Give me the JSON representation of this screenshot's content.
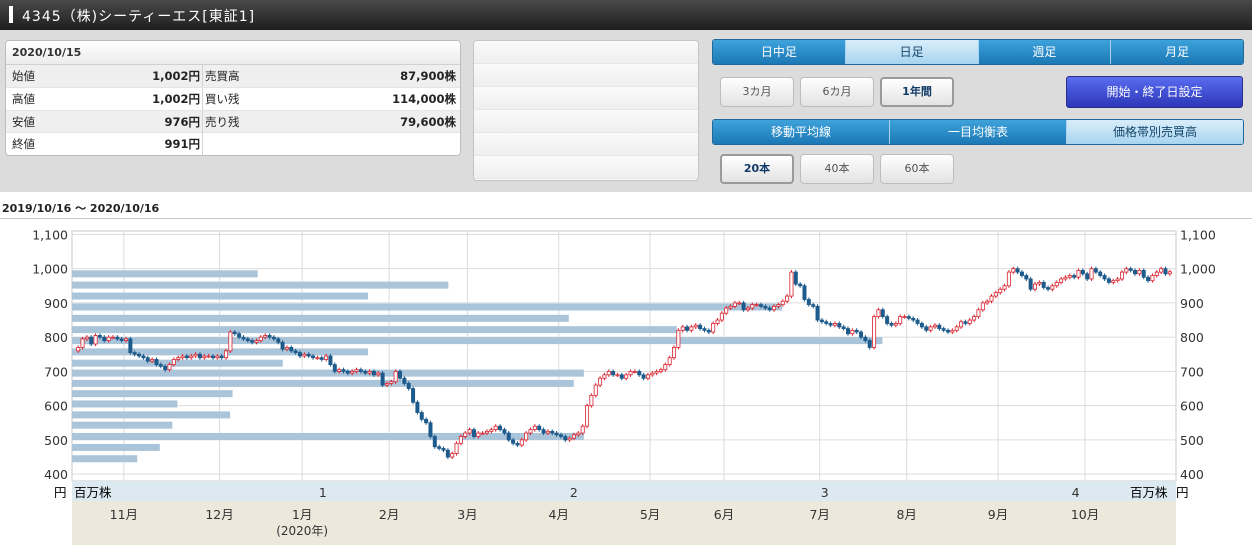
{
  "header": {
    "title": "4345（株)シーティーエス[東証1]"
  },
  "quote": {
    "date": "2020/10/15",
    "rows": [
      {
        "label1": "始値",
        "value1": "1,002円",
        "label2": "売買高",
        "value2": "87,900株"
      },
      {
        "label1": "高値",
        "value1": "1,002円",
        "label2": "買い残",
        "value2": "114,000株"
      },
      {
        "label1": "安値",
        "value1": "976円",
        "label2": "売り残",
        "value2": "79,600株"
      },
      {
        "label1": "終値",
        "value1": "991円",
        "label2": "",
        "value2": ""
      }
    ]
  },
  "controls": {
    "timeframe_tabs": [
      {
        "label": "日中足",
        "active": false
      },
      {
        "label": "日足",
        "active": true
      },
      {
        "label": "週足",
        "active": false
      },
      {
        "label": "月足",
        "active": false
      }
    ],
    "period_buttons": [
      {
        "label": "3カ月",
        "active": false
      },
      {
        "label": "6カ月",
        "active": false
      },
      {
        "label": "1年間",
        "active": true
      }
    ],
    "range_button": "開始・終了日設定",
    "indicator_tabs": [
      {
        "label": "移動平均線",
        "active": false
      },
      {
        "label": "一目均衡表",
        "active": false
      },
      {
        "label": "価格帯別売買高",
        "active": true
      }
    ],
    "ma_buttons": [
      {
        "label": "20本",
        "active": true
      },
      {
        "label": "40本",
        "active": false
      },
      {
        "label": "60本",
        "active": false
      }
    ]
  },
  "period_text": "2019/10/16 ～ 2020/10/16",
  "colors": {
    "up": "#d9232f",
    "down": "#1d5b8c",
    "volume_bar": "#aac4d9",
    "axis_band": "#dde9f1",
    "month_band": "#ece9dc"
  },
  "chart_data": {
    "type": "candlestick",
    "y_unit": "円",
    "volume_unit": "百万株",
    "ylim": [
      380,
      1110
    ],
    "y_ticks": [
      "1,100",
      "1,000",
      "900",
      "800",
      "700",
      "600",
      "500",
      "400"
    ],
    "volume_axis_ticks": [
      "1",
      "2",
      "3",
      "4"
    ],
    "volume_axis_max": 4.4,
    "x_month_labels": [
      {
        "label": "11月",
        "sub": ""
      },
      {
        "label": "12月",
        "sub": ""
      },
      {
        "label": "1月",
        "sub": "(2020年)"
      },
      {
        "label": "2月",
        "sub": ""
      },
      {
        "label": "3月",
        "sub": ""
      },
      {
        "label": "4月",
        "sub": ""
      },
      {
        "label": "5月",
        "sub": ""
      },
      {
        "label": "6月",
        "sub": ""
      },
      {
        "label": "7月",
        "sub": ""
      },
      {
        "label": "8月",
        "sub": ""
      },
      {
        "label": "9月",
        "sub": ""
      },
      {
        "label": "10月",
        "sub": ""
      }
    ],
    "month_start_index": [
      11,
      33,
      52,
      72,
      90,
      111,
      132,
      149,
      171,
      191,
      212,
      232
    ],
    "volume_by_price": [
      {
        "price": 985,
        "volume": 0.74
      },
      {
        "price": 952,
        "volume": 1.5
      },
      {
        "price": 920,
        "volume": 1.18
      },
      {
        "price": 888,
        "volume": 2.83
      },
      {
        "price": 855,
        "volume": 1.98
      },
      {
        "price": 822,
        "volume": 2.41
      },
      {
        "price": 790,
        "volume": 3.23
      },
      {
        "price": 757,
        "volume": 1.18
      },
      {
        "price": 724,
        "volume": 0.84
      },
      {
        "price": 695,
        "volume": 2.04
      },
      {
        "price": 665,
        "volume": 2.0
      },
      {
        "price": 635,
        "volume": 0.64
      },
      {
        "price": 605,
        "volume": 0.42
      },
      {
        "price": 573,
        "volume": 0.63
      },
      {
        "price": 543,
        "volume": 0.4
      },
      {
        "price": 510,
        "volume": 2.04
      },
      {
        "price": 478,
        "volume": 0.35
      },
      {
        "price": 445,
        "volume": 0.26
      }
    ],
    "close": [
      770,
      795,
      800,
      780,
      805,
      800,
      790,
      800,
      800,
      795,
      790,
      795,
      755,
      750,
      745,
      740,
      730,
      735,
      720,
      715,
      705,
      720,
      735,
      740,
      745,
      740,
      745,
      750,
      740,
      745,
      745,
      740,
      745,
      740,
      760,
      815,
      810,
      800,
      795,
      790,
      785,
      790,
      800,
      805,
      800,
      795,
      785,
      765,
      770,
      760,
      755,
      745,
      750,
      745,
      740,
      740,
      735,
      745,
      720,
      700,
      705,
      700,
      695,
      700,
      705,
      700,
      695,
      700,
      690,
      695,
      660,
      665,
      670,
      700,
      680,
      665,
      650,
      610,
      580,
      560,
      550,
      510,
      480,
      475,
      470,
      450,
      460,
      490,
      510,
      520,
      530,
      510,
      520,
      520,
      525,
      530,
      540,
      530,
      520,
      500,
      490,
      485,
      500,
      520,
      530,
      540,
      530,
      520,
      525,
      520,
      515,
      510,
      500,
      505,
      515,
      520,
      540,
      600,
      630,
      660,
      680,
      690,
      700,
      690,
      690,
      680,
      690,
      700,
      700,
      690,
      680,
      690,
      695,
      700,
      705,
      720,
      740,
      770,
      820,
      830,
      820,
      830,
      835,
      825,
      820,
      815,
      840,
      850,
      870,
      885,
      890,
      900,
      900,
      880,
      885,
      895,
      895,
      890,
      885,
      880,
      890,
      895,
      905,
      920,
      990,
      955,
      950,
      910,
      895,
      890,
      850,
      845,
      840,
      835,
      840,
      830,
      825,
      810,
      820,
      815,
      800,
      790,
      770,
      860,
      880,
      860,
      840,
      835,
      840,
      860,
      860,
      855,
      850,
      840,
      830,
      820,
      830,
      835,
      825,
      820,
      815,
      820,
      830,
      845,
      840,
      850,
      860,
      880,
      900,
      905,
      920,
      930,
      940,
      950,
      990,
      1000,
      990,
      980,
      970,
      940,
      955,
      960,
      945,
      940,
      950,
      960,
      970,
      975,
      980,
      975,
      995,
      985,
      970,
      1000,
      990,
      980,
      970,
      960,
      965,
      970,
      990,
      1000,
      995,
      985,
      995,
      975,
      965,
      980,
      990,
      1000,
      985,
      991
    ],
    "plot_margins_note": ""
  }
}
